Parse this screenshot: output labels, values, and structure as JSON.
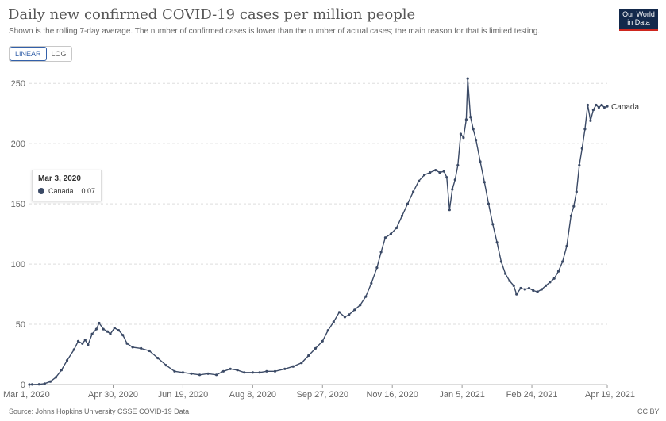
{
  "header": {
    "title": "Daily new confirmed COVID-19 cases per million people",
    "subtitle": "Shown is the rolling 7-day average. The number of confirmed cases is lower than the number of actual cases; the main reason for that is limited testing.",
    "logo_line1": "Our World",
    "logo_line2": "in Data"
  },
  "scale_toggle": {
    "linear_label": "LINEAR",
    "log_label": "LOG",
    "selected": "LINEAR"
  },
  "tooltip": {
    "date": "Mar 3, 2020",
    "series": "Canada",
    "value": "0.07"
  },
  "footer": {
    "source": "Source: Johns Hopkins University CSSE COVID-19 Data",
    "license": "CC BY"
  },
  "chart_data": {
    "type": "line",
    "title": "Daily new confirmed COVID-19 cases per million people",
    "xlabel": "",
    "ylabel": "",
    "ylim": [
      0,
      260
    ],
    "yticks": [
      0,
      50,
      100,
      150,
      200,
      250
    ],
    "xlim": [
      "2020-03-01",
      "2021-04-19"
    ],
    "xticks": [
      {
        "date": "2020-03-01",
        "label": "Mar 1, 2020"
      },
      {
        "date": "2020-04-30",
        "label": "Apr 30, 2020"
      },
      {
        "date": "2020-06-19",
        "label": "Jun 19, 2020"
      },
      {
        "date": "2020-08-08",
        "label": "Aug 8, 2020"
      },
      {
        "date": "2020-09-27",
        "label": "Sep 27, 2020"
      },
      {
        "date": "2020-11-16",
        "label": "Nov 16, 2020"
      },
      {
        "date": "2021-01-05",
        "label": "Jan 5, 2021"
      },
      {
        "date": "2021-02-24",
        "label": "Feb 24, 2021"
      },
      {
        "date": "2021-04-19",
        "label": "Apr 19, 2021"
      }
    ],
    "grid": "horizontal",
    "color": "#3b4a66",
    "series": [
      {
        "name": "Canada",
        "points": [
          [
            "2020-03-01",
            0
          ],
          [
            "2020-03-03",
            0.07
          ],
          [
            "2020-03-08",
            0.2
          ],
          [
            "2020-03-12",
            0.8
          ],
          [
            "2020-03-16",
            2.5
          ],
          [
            "2020-03-20",
            6
          ],
          [
            "2020-03-24",
            12
          ],
          [
            "2020-03-28",
            20
          ],
          [
            "2020-04-02",
            29
          ],
          [
            "2020-04-05",
            36
          ],
          [
            "2020-04-08",
            34
          ],
          [
            "2020-04-10",
            37
          ],
          [
            "2020-04-12",
            33
          ],
          [
            "2020-04-15",
            42
          ],
          [
            "2020-04-18",
            46
          ],
          [
            "2020-04-20",
            51
          ],
          [
            "2020-04-23",
            46
          ],
          [
            "2020-04-26",
            44
          ],
          [
            "2020-04-28",
            42
          ],
          [
            "2020-05-01",
            47
          ],
          [
            "2020-05-04",
            45
          ],
          [
            "2020-05-07",
            41
          ],
          [
            "2020-05-10",
            34
          ],
          [
            "2020-05-14",
            31
          ],
          [
            "2020-05-20",
            30
          ],
          [
            "2020-05-26",
            28
          ],
          [
            "2020-06-01",
            22
          ],
          [
            "2020-06-07",
            16
          ],
          [
            "2020-06-13",
            11
          ],
          [
            "2020-06-19",
            10
          ],
          [
            "2020-06-25",
            9
          ],
          [
            "2020-07-01",
            8
          ],
          [
            "2020-07-07",
            9
          ],
          [
            "2020-07-13",
            8
          ],
          [
            "2020-07-18",
            11
          ],
          [
            "2020-07-23",
            13
          ],
          [
            "2020-07-28",
            12
          ],
          [
            "2020-08-02",
            10
          ],
          [
            "2020-08-08",
            10
          ],
          [
            "2020-08-13",
            10
          ],
          [
            "2020-08-18",
            11
          ],
          [
            "2020-08-24",
            11
          ],
          [
            "2020-08-31",
            13
          ],
          [
            "2020-09-06",
            15
          ],
          [
            "2020-09-12",
            18
          ],
          [
            "2020-09-17",
            24
          ],
          [
            "2020-09-22",
            30
          ],
          [
            "2020-09-27",
            36
          ],
          [
            "2020-10-01",
            45
          ],
          [
            "2020-10-05",
            52
          ],
          [
            "2020-10-09",
            60
          ],
          [
            "2020-10-13",
            56
          ],
          [
            "2020-10-16",
            58
          ],
          [
            "2020-10-20",
            62
          ],
          [
            "2020-10-24",
            66
          ],
          [
            "2020-10-28",
            73
          ],
          [
            "2020-11-01",
            84
          ],
          [
            "2020-11-05",
            97
          ],
          [
            "2020-11-08",
            110
          ],
          [
            "2020-11-11",
            122
          ],
          [
            "2020-11-15",
            125
          ],
          [
            "2020-11-19",
            130
          ],
          [
            "2020-11-23",
            140
          ],
          [
            "2020-11-27",
            150
          ],
          [
            "2020-12-01",
            160
          ],
          [
            "2020-12-05",
            169
          ],
          [
            "2020-12-09",
            174
          ],
          [
            "2020-12-13",
            176
          ],
          [
            "2020-12-17",
            178
          ],
          [
            "2020-12-20",
            176
          ],
          [
            "2020-12-23",
            177
          ],
          [
            "2020-12-25",
            172
          ],
          [
            "2020-12-27",
            145
          ],
          [
            "2020-12-29",
            162
          ],
          [
            "2020-12-31",
            170
          ],
          [
            "2021-01-02",
            182
          ],
          [
            "2021-01-04",
            208
          ],
          [
            "2021-01-06",
            205
          ],
          [
            "2021-01-08",
            220
          ],
          [
            "2021-01-09",
            254
          ],
          [
            "2021-01-11",
            222
          ],
          [
            "2021-01-13",
            212
          ],
          [
            "2021-01-15",
            203
          ],
          [
            "2021-01-18",
            185
          ],
          [
            "2021-01-21",
            168
          ],
          [
            "2021-01-24",
            150
          ],
          [
            "2021-01-27",
            133
          ],
          [
            "2021-01-30",
            118
          ],
          [
            "2021-02-02",
            102
          ],
          [
            "2021-02-05",
            92
          ],
          [
            "2021-02-08",
            86
          ],
          [
            "2021-02-11",
            82
          ],
          [
            "2021-02-13",
            75
          ],
          [
            "2021-02-16",
            80
          ],
          [
            "2021-02-19",
            79
          ],
          [
            "2021-02-22",
            80
          ],
          [
            "2021-02-25",
            78
          ],
          [
            "2021-02-28",
            77
          ],
          [
            "2021-03-03",
            79
          ],
          [
            "2021-03-06",
            82
          ],
          [
            "2021-03-09",
            85
          ],
          [
            "2021-03-12",
            88
          ],
          [
            "2021-03-15",
            94
          ],
          [
            "2021-03-18",
            102
          ],
          [
            "2021-03-21",
            115
          ],
          [
            "2021-03-24",
            140
          ],
          [
            "2021-03-26",
            148
          ],
          [
            "2021-03-28",
            160
          ],
          [
            "2021-03-30",
            182
          ],
          [
            "2021-04-01",
            196
          ],
          [
            "2021-04-03",
            212
          ],
          [
            "2021-04-05",
            232
          ],
          [
            "2021-04-07",
            219
          ],
          [
            "2021-04-09",
            228
          ],
          [
            "2021-04-11",
            232
          ],
          [
            "2021-04-13",
            230
          ],
          [
            "2021-04-15",
            232
          ],
          [
            "2021-04-17",
            230
          ],
          [
            "2021-04-19",
            231
          ]
        ]
      }
    ]
  }
}
